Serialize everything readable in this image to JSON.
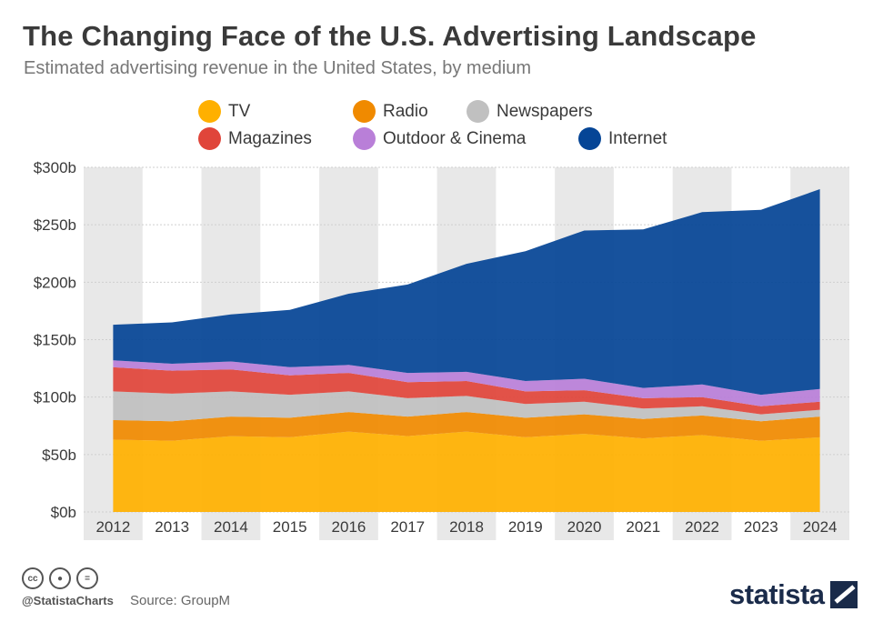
{
  "header": {
    "title": "The Changing Face of the U.S. Advertising Landscape",
    "subtitle": "Estimated advertising revenue in the United States, by medium"
  },
  "footer": {
    "handle": "@StatistaCharts",
    "source": "Source: GroupM",
    "brand": "statista",
    "cc_icons": [
      "cc",
      "by",
      "eq"
    ]
  },
  "chart_data": {
    "type": "area",
    "stacked": true,
    "title": "The Changing Face of the U.S. Advertising Landscape",
    "subtitle": "Estimated advertising revenue in the United States, by medium",
    "xlabel": "",
    "ylabel": "",
    "ylim": [
      0,
      300
    ],
    "yticks": [
      0,
      50,
      100,
      150,
      200,
      250,
      300
    ],
    "ytick_labels": [
      "$0b",
      "$50b",
      "$100b",
      "$150b",
      "$200b",
      "$250b",
      "$300b"
    ],
    "categories": [
      "2012",
      "2013",
      "2014",
      "2015",
      "2016",
      "2017",
      "2018",
      "2019",
      "2020",
      "2021",
      "2022",
      "2023",
      "2024"
    ],
    "legend_position": "top",
    "series": [
      {
        "name": "TV",
        "color": "#ffb000",
        "values": [
          63,
          62,
          66,
          65,
          70,
          66,
          70,
          65,
          68,
          64,
          67,
          62,
          65
        ]
      },
      {
        "name": "Radio",
        "color": "#f08a00",
        "values": [
          17,
          17,
          17,
          17,
          17,
          17,
          17,
          17,
          17,
          17,
          17,
          17,
          18
        ]
      },
      {
        "name": "Newspapers",
        "color": "#c0c0c0",
        "values": [
          25,
          24,
          22,
          20,
          18,
          16,
          14,
          12,
          11,
          9,
          8,
          6,
          6
        ]
      },
      {
        "name": "Magazines",
        "color": "#e0453a",
        "values": [
          21,
          20,
          19,
          17,
          16,
          14,
          13,
          11,
          10,
          9,
          8,
          7,
          7
        ]
      },
      {
        "name": "Outdoor & Cinema",
        "color": "#b97fd8",
        "values": [
          6,
          6,
          7,
          7,
          7,
          8,
          8,
          9,
          10,
          9,
          11,
          10,
          11
        ]
      },
      {
        "name": "Internet",
        "color": "#054596",
        "values": [
          31,
          36,
          41,
          50,
          62,
          77,
          94,
          113,
          129,
          138,
          150,
          161,
          174
        ]
      }
    ]
  }
}
